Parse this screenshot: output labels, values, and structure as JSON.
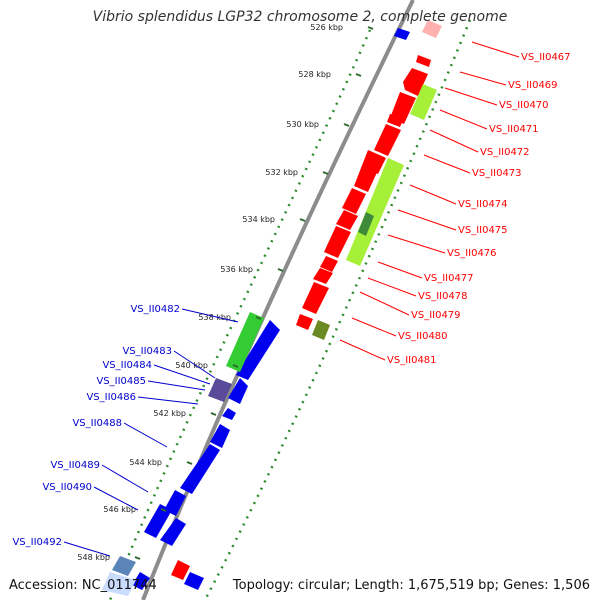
{
  "title": "Vibrio splendidus LGP32 chromosome 2, complete genome",
  "footer": {
    "accession": "Accession: NC_011744",
    "topology": "Topology: circular; Length: 1,675,519 bp; Genes: 1,506"
  },
  "ticks": [
    "526 kbp",
    "528 kbp",
    "530 kbp",
    "532 kbp",
    "534 kbp",
    "536 kbp",
    "538 kbp",
    "540 kbp",
    "542 kbp",
    "544 kbp",
    "546 kbp",
    "548 kbp"
  ],
  "forward_genes": [
    "VS_II0467",
    "VS_II0469",
    "VS_II0470",
    "VS_II0471",
    "VS_II0472",
    "VS_II0473",
    "VS_II0474",
    "VS_II0475",
    "VS_II0476",
    "VS_II0477",
    "VS_II0478",
    "VS_II0479",
    "VS_II0480",
    "VS_II0481"
  ],
  "reverse_genes": [
    "VS_II0482",
    "VS_II0483",
    "VS_II0484",
    "VS_II0485",
    "VS_II0486",
    "VS_II0488",
    "VS_II0489",
    "VS_II0490",
    "VS_II0492"
  ],
  "colors": {
    "forward": "#ff0000",
    "reverse": "#0000ee",
    "rna_green": "#33cc33",
    "light_green": "#a6f03a",
    "dark_green": "#6b8a23",
    "purple": "#5a4a9a",
    "backbone": "#8c8c8c",
    "dots": "#2e8b2e"
  }
}
